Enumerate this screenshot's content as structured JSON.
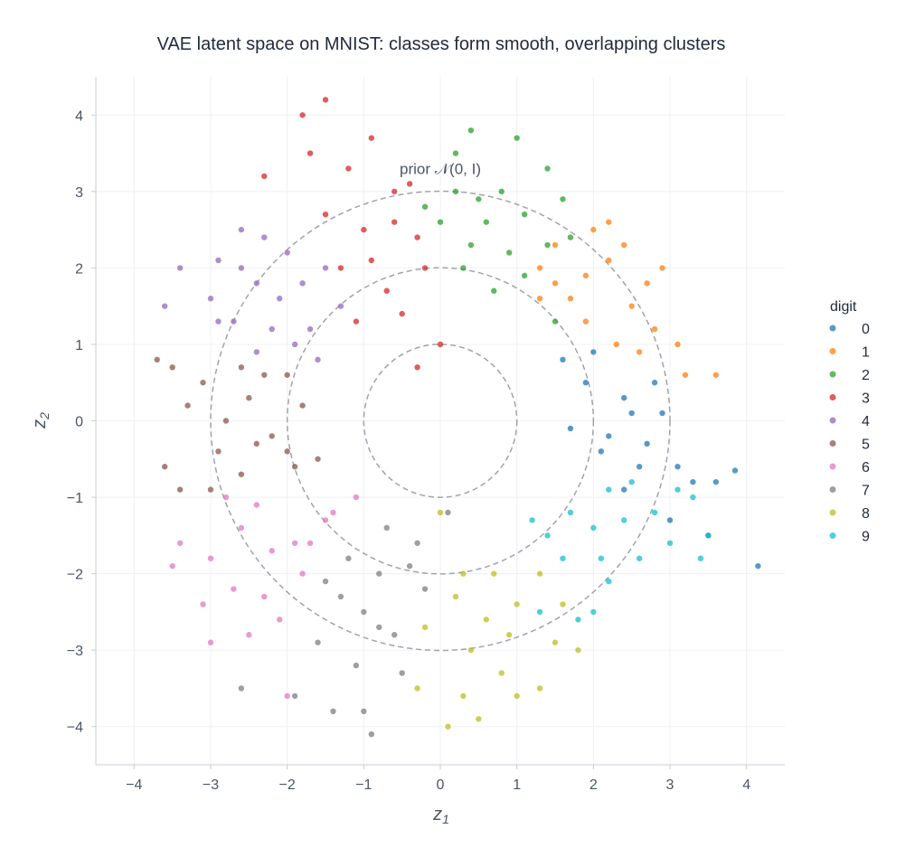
{
  "chart_data": {
    "type": "scatter",
    "title": "VAE latent space on MNIST: classes form smooth, overlapping clusters",
    "xlabel": "z1",
    "ylabel": "z2",
    "xlim": [
      -4.5,
      4.5
    ],
    "ylim": [
      -4.5,
      4.5
    ],
    "xticks": [
      -4,
      -3,
      -2,
      -1,
      0,
      1,
      2,
      3,
      4
    ],
    "yticks": [
      -4,
      -3,
      -2,
      -1,
      0,
      1,
      2,
      3,
      4
    ],
    "xtick_labels": [
      "−4",
      "−3",
      "−2",
      "−1",
      "0",
      "1",
      "2",
      "3",
      "4"
    ],
    "ytick_labels": [
      "−4",
      "−3",
      "−2",
      "−1",
      "0",
      "1",
      "2",
      "3",
      "4"
    ],
    "grid": true,
    "legend": {
      "title": "digit",
      "placement": "right"
    },
    "reference_circles": {
      "radii": [
        1,
        2,
        3
      ],
      "style": "dashed",
      "color": "#a0a3ab"
    },
    "annotation": {
      "text": "prior 𝒩(0, I)",
      "x": 0,
      "y": 3.3
    },
    "series": [
      {
        "name": "0",
        "color": "#1f77b4",
        "points": [
          [
            2.5,
            0.1
          ],
          [
            2.2,
            -0.2
          ],
          [
            2.7,
            -0.3
          ],
          [
            1.9,
            0.5
          ],
          [
            2.0,
            0.9
          ],
          [
            2.4,
            0.3
          ],
          [
            2.9,
            0.1
          ],
          [
            3.1,
            -0.6
          ],
          [
            3.3,
            -0.8
          ],
          [
            3.6,
            -0.8
          ],
          [
            3.85,
            -0.65
          ],
          [
            4.15,
            -1.9
          ],
          [
            3.5,
            -1.5
          ],
          [
            1.7,
            -0.1
          ],
          [
            2.6,
            -0.6
          ],
          [
            2.1,
            -0.4
          ],
          [
            2.8,
            0.5
          ],
          [
            1.6,
            0.8
          ],
          [
            3.0,
            -1.3
          ],
          [
            2.4,
            -0.9
          ]
        ]
      },
      {
        "name": "1",
        "color": "#ff7f0e",
        "points": [
          [
            1.9,
            1.9
          ],
          [
            2.2,
            2.1
          ],
          [
            1.5,
            2.3
          ],
          [
            2.5,
            1.5
          ],
          [
            2.8,
            1.2
          ],
          [
            3.2,
            0.6
          ],
          [
            3.6,
            0.6
          ],
          [
            2.9,
            2.0
          ],
          [
            2.0,
            2.5
          ],
          [
            1.7,
            1.6
          ],
          [
            2.4,
            2.3
          ],
          [
            1.3,
            2.0
          ],
          [
            2.6,
            0.9
          ],
          [
            3.1,
            1.0
          ],
          [
            1.9,
            1.3
          ],
          [
            2.2,
            2.6
          ],
          [
            2.7,
            1.8
          ],
          [
            1.5,
            1.8
          ],
          [
            2.3,
            1.0
          ],
          [
            1.3,
            1.6
          ]
        ]
      },
      {
        "name": "2",
        "color": "#2ca02c",
        "points": [
          [
            0.4,
            3.8
          ],
          [
            0.2,
            3.5
          ],
          [
            1.0,
            3.7
          ],
          [
            0.6,
            2.6
          ],
          [
            0.9,
            2.2
          ],
          [
            0.3,
            2.0
          ],
          [
            1.4,
            2.3
          ],
          [
            0.0,
            2.6
          ],
          [
            0.8,
            3.0
          ],
          [
            1.4,
            3.3
          ],
          [
            1.6,
            2.9
          ],
          [
            0.4,
            2.3
          ],
          [
            1.1,
            1.9
          ],
          [
            -0.2,
            2.8
          ],
          [
            0.7,
            1.7
          ],
          [
            1.5,
            1.3
          ],
          [
            0.2,
            3.0
          ],
          [
            1.1,
            2.7
          ],
          [
            0.5,
            2.9
          ],
          [
            1.7,
            2.4
          ]
        ]
      },
      {
        "name": "3",
        "color": "#d62728",
        "points": [
          [
            -1.5,
            4.2
          ],
          [
            -1.8,
            4.0
          ],
          [
            -1.7,
            3.5
          ],
          [
            -1.2,
            3.3
          ],
          [
            -0.9,
            3.7
          ],
          [
            -0.4,
            3.1
          ],
          [
            -0.6,
            2.6
          ],
          [
            -0.3,
            2.4
          ],
          [
            -1.0,
            2.5
          ],
          [
            -1.3,
            2.0
          ],
          [
            -0.7,
            1.7
          ],
          [
            -0.5,
            1.4
          ],
          [
            -0.3,
            0.7
          ],
          [
            0.0,
            1.0
          ],
          [
            -1.1,
            1.3
          ],
          [
            -2.3,
            3.2
          ],
          [
            -0.2,
            2.0
          ],
          [
            -0.9,
            2.1
          ],
          [
            -1.5,
            2.7
          ],
          [
            -0.6,
            3.0
          ]
        ]
      },
      {
        "name": "4",
        "color": "#9467bd",
        "points": [
          [
            -2.9,
            2.1
          ],
          [
            -3.6,
            1.5
          ],
          [
            -2.6,
            2.5
          ],
          [
            -2.4,
            1.8
          ],
          [
            -2.0,
            2.2
          ],
          [
            -3.0,
            1.6
          ],
          [
            -2.7,
            1.3
          ],
          [
            -2.1,
            1.6
          ],
          [
            -1.7,
            1.2
          ],
          [
            -1.5,
            2.0
          ],
          [
            -2.4,
            0.9
          ],
          [
            -3.4,
            2.0
          ],
          [
            -1.9,
            1.0
          ],
          [
            -2.6,
            2.0
          ],
          [
            -1.3,
            1.5
          ],
          [
            -2.2,
            1.2
          ],
          [
            -1.8,
            1.8
          ],
          [
            -2.9,
            1.3
          ],
          [
            -2.3,
            2.4
          ],
          [
            -1.6,
            0.8
          ]
        ]
      },
      {
        "name": "5",
        "color": "#8c564b",
        "points": [
          [
            -3.7,
            0.8
          ],
          [
            -3.5,
            0.7
          ],
          [
            -3.6,
            -0.6
          ],
          [
            -3.4,
            -0.9
          ],
          [
            -2.8,
            0.0
          ],
          [
            -2.5,
            0.3
          ],
          [
            -2.2,
            -0.2
          ],
          [
            -2.9,
            -0.4
          ],
          [
            -2.0,
            0.6
          ],
          [
            -1.8,
            0.2
          ],
          [
            -2.6,
            -0.7
          ],
          [
            -3.1,
            0.5
          ],
          [
            -2.3,
            0.6
          ],
          [
            -1.6,
            -0.5
          ],
          [
            -3.0,
            -0.9
          ],
          [
            -2.0,
            -0.4
          ],
          [
            -2.6,
            0.7
          ],
          [
            -3.3,
            0.2
          ],
          [
            -2.4,
            -0.3
          ],
          [
            -1.9,
            -0.6
          ]
        ]
      },
      {
        "name": "6",
        "color": "#e377c2",
        "points": [
          [
            -2.6,
            -1.4
          ],
          [
            -2.2,
            -1.7
          ],
          [
            -3.0,
            -1.8
          ],
          [
            -2.7,
            -2.2
          ],
          [
            -1.9,
            -1.6
          ],
          [
            -1.5,
            -1.3
          ],
          [
            -3.4,
            -1.6
          ],
          [
            -3.5,
            -1.9
          ],
          [
            -2.3,
            -2.3
          ],
          [
            -2.0,
            -3.6
          ],
          [
            -2.5,
            -2.8
          ],
          [
            -3.1,
            -2.4
          ],
          [
            -1.4,
            -1.2
          ],
          [
            -1.8,
            -2.0
          ],
          [
            -2.8,
            -1.0
          ],
          [
            -1.1,
            -1.0
          ],
          [
            -2.4,
            -1.1
          ],
          [
            -3.0,
            -2.9
          ],
          [
            -1.7,
            -1.6
          ],
          [
            -2.1,
            -2.6
          ]
        ]
      },
      {
        "name": "7",
        "color": "#7f7f7f",
        "points": [
          [
            -0.8,
            -2.0
          ],
          [
            -1.0,
            -2.5
          ],
          [
            -0.6,
            -2.8
          ],
          [
            -1.3,
            -2.3
          ],
          [
            -1.6,
            -2.9
          ],
          [
            -0.4,
            -1.9
          ],
          [
            -0.2,
            -2.2
          ],
          [
            -1.1,
            -3.2
          ],
          [
            -1.4,
            -3.8
          ],
          [
            -1.0,
            -3.8
          ],
          [
            -0.9,
            -4.1
          ],
          [
            -1.9,
            -3.6
          ],
          [
            -2.6,
            -3.5
          ],
          [
            -0.5,
            -3.3
          ],
          [
            -0.7,
            -1.4
          ],
          [
            -1.5,
            -2.1
          ],
          [
            -0.3,
            -1.6
          ],
          [
            -1.2,
            -1.8
          ],
          [
            -0.8,
            -2.7
          ],
          [
            0.1,
            -1.2
          ]
        ]
      },
      {
        "name": "8",
        "color": "#bcbd22",
        "points": [
          [
            0.2,
            -2.3
          ],
          [
            0.6,
            -2.6
          ],
          [
            0.4,
            -3.0
          ],
          [
            0.8,
            -3.3
          ],
          [
            0.3,
            -3.6
          ],
          [
            0.1,
            -4.0
          ],
          [
            1.0,
            -2.4
          ],
          [
            1.3,
            -2.0
          ],
          [
            1.5,
            -2.9
          ],
          [
            0.5,
            -3.9
          ],
          [
            -0.3,
            -3.5
          ],
          [
            0.9,
            -2.8
          ],
          [
            1.8,
            -3.0
          ],
          [
            1.0,
            -3.6
          ],
          [
            1.3,
            -3.5
          ],
          [
            0.0,
            -1.2
          ],
          [
            0.7,
            -2.0
          ],
          [
            -0.2,
            -2.7
          ],
          [
            1.6,
            -2.4
          ],
          [
            0.3,
            -2.0
          ]
        ]
      },
      {
        "name": "9",
        "color": "#17becf",
        "points": [
          [
            2.0,
            -1.4
          ],
          [
            1.6,
            -1.8
          ],
          [
            2.4,
            -1.3
          ],
          [
            2.8,
            -1.2
          ],
          [
            3.0,
            -1.6
          ],
          [
            2.2,
            -2.1
          ],
          [
            1.8,
            -2.6
          ],
          [
            2.0,
            -2.5
          ],
          [
            1.4,
            -1.5
          ],
          [
            3.3,
            -1.0
          ],
          [
            2.6,
            -1.8
          ],
          [
            1.3,
            -2.5
          ],
          [
            2.5,
            -0.8
          ],
          [
            3.5,
            -1.5
          ],
          [
            1.7,
            -1.2
          ],
          [
            3.4,
            -1.8
          ],
          [
            2.2,
            -0.9
          ],
          [
            1.2,
            -1.3
          ],
          [
            3.1,
            -0.9
          ],
          [
            2.1,
            -1.8
          ]
        ]
      }
    ]
  }
}
